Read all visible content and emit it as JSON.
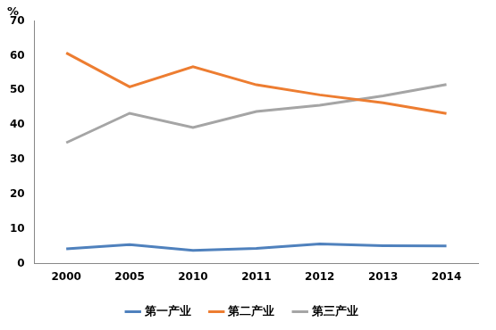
{
  "chart_data": {
    "type": "line",
    "y_label": "%",
    "categories": [
      "2000",
      "2005",
      "2010",
      "2011",
      "2012",
      "2013",
      "2014"
    ],
    "series": [
      {
        "name": "第一产业",
        "color": "#4f81bd",
        "values": [
          4.3,
          5.5,
          3.8,
          4.4,
          5.7,
          5.2,
          5.1
        ]
      },
      {
        "name": "第二产业",
        "color": "#ed7d31",
        "values": [
          60.8,
          51.0,
          56.8,
          51.6,
          48.7,
          46.4,
          43.3
        ]
      },
      {
        "name": "第三产业",
        "color": "#a5a5a5",
        "values": [
          34.9,
          43.4,
          39.3,
          43.9,
          45.7,
          48.4,
          51.7
        ]
      }
    ],
    "ylim": [
      0,
      70
    ],
    "yticks": [
      0,
      10,
      20,
      30,
      40,
      50,
      60,
      70
    ],
    "grid": false,
    "legend": "bottom"
  }
}
